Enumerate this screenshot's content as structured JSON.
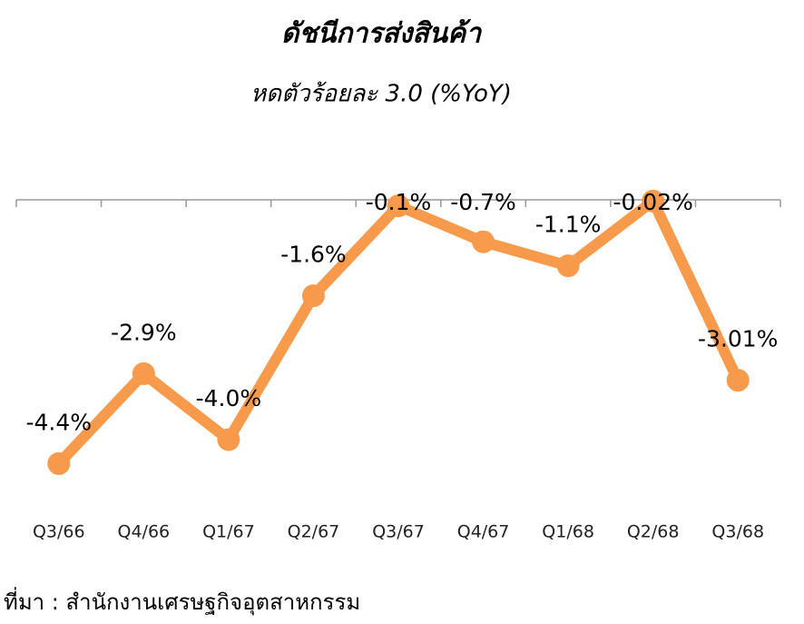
{
  "chart_data": {
    "type": "line",
    "title": "ดัชนีการส่งสินค้า",
    "subtitle": "หดตัวร้อยละ 3.0 (%YoY)",
    "categories": [
      "Q3/66",
      "Q4/66",
      "Q1/67",
      "Q2/67",
      "Q3/67",
      "Q4/67",
      "Q1/68",
      "Q2/68",
      "Q3/68"
    ],
    "values": [
      -4.4,
      -2.9,
      -4.0,
      -1.6,
      -0.1,
      -0.7,
      -1.1,
      -0.02,
      -3.01
    ],
    "value_labels": [
      "-4.4%",
      "-2.9%",
      "-4.0%",
      "-1.6%",
      "-0.1%",
      "-0.7%",
      "-1.1%",
      "-0.02%",
      "-3.01%"
    ],
    "color": "#f79a4b",
    "ylim": [
      -5,
      0
    ],
    "source": "ที่มา : สำนักงานเศรษฐกิจอุตสาหกรรม"
  }
}
